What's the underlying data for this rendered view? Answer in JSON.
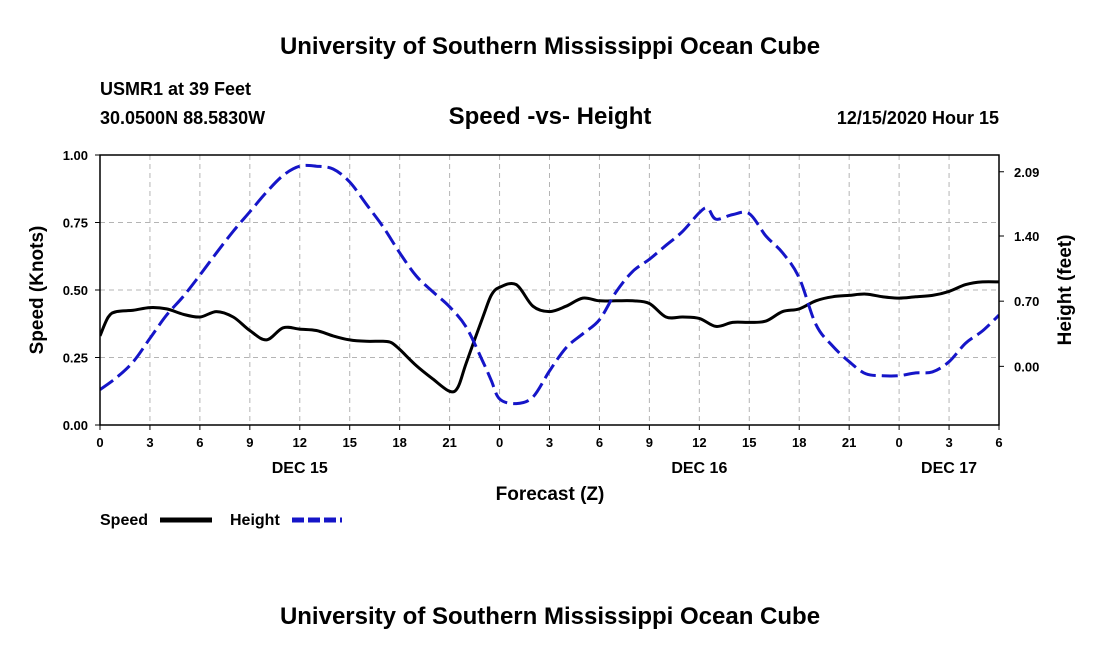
{
  "header": {
    "title": "University of Southern Mississippi Ocean Cube",
    "station": "USMR1 at 39 Feet",
    "coords": "30.0500N 88.5830W",
    "date": "12/15/2020 Hour 15",
    "footer": "University of Southern Mississippi Ocean Cube"
  },
  "colors": {
    "speed": "#000000",
    "height": "#1515c8",
    "grid": "#b4b4b4",
    "axis": "#000000"
  },
  "chart_data": {
    "type": "line",
    "title": "Speed -vs- Height",
    "xlabel": "Forecast (Z)",
    "ylabel_left": "Speed (Knots)",
    "ylabel_right": "Height (feet)",
    "x_unit": "hours since 2020-12-15 00Z",
    "xlim": [
      0,
      54
    ],
    "ylim_left": [
      0,
      1
    ],
    "ylim_right": [
      -0.63,
      2.27
    ],
    "grid": true,
    "legend_position": "bottom-left",
    "x_ticks": [
      {
        "x": 0,
        "label": "0"
      },
      {
        "x": 3,
        "label": "3"
      },
      {
        "x": 6,
        "label": "6"
      },
      {
        "x": 9,
        "label": "9"
      },
      {
        "x": 12,
        "label": "12"
      },
      {
        "x": 15,
        "label": "15"
      },
      {
        "x": 18,
        "label": "18"
      },
      {
        "x": 21,
        "label": "21"
      },
      {
        "x": 24,
        "label": "0"
      },
      {
        "x": 27,
        "label": "3"
      },
      {
        "x": 30,
        "label": "6"
      },
      {
        "x": 33,
        "label": "9"
      },
      {
        "x": 36,
        "label": "12"
      },
      {
        "x": 39,
        "label": "15"
      },
      {
        "x": 42,
        "label": "18"
      },
      {
        "x": 45,
        "label": "21"
      },
      {
        "x": 48,
        "label": "0"
      },
      {
        "x": 51,
        "label": "3"
      },
      {
        "x": 54,
        "label": "6"
      }
    ],
    "day_labels": [
      {
        "x": 12,
        "label": "DEC 15"
      },
      {
        "x": 36,
        "label": "DEC 16"
      },
      {
        "x": 51,
        "label": "DEC 17"
      }
    ],
    "y_ticks_left": [
      "0.00",
      "0.25",
      "0.50",
      "0.75",
      "1.00"
    ],
    "y_ticks_right": [
      "0.00",
      "0.70",
      "1.40",
      "2.09"
    ],
    "y_ticks_right_values": [
      0.0,
      0.7,
      1.4,
      2.09
    ],
    "series": [
      {
        "name": "Speed",
        "axis": "left",
        "style": "solid",
        "x": [
          0,
          0.5,
          1,
          2,
          3,
          4,
          5,
          6,
          7,
          8,
          9,
          10,
          11,
          12,
          13,
          14,
          15,
          16,
          17,
          17.5,
          18,
          19,
          20,
          21,
          21.5,
          22,
          23,
          23.5,
          24,
          25,
          26,
          27,
          28,
          29,
          30,
          31,
          32,
          33,
          34,
          35,
          36,
          37,
          38,
          39,
          40,
          41,
          42,
          43,
          44,
          45,
          46,
          47,
          48,
          49,
          50,
          51,
          52,
          53,
          54
        ],
        "values": [
          0.33,
          0.4,
          0.42,
          0.425,
          0.435,
          0.43,
          0.41,
          0.4,
          0.42,
          0.4,
          0.35,
          0.315,
          0.36,
          0.355,
          0.35,
          0.33,
          0.315,
          0.31,
          0.31,
          0.305,
          0.28,
          0.22,
          0.17,
          0.125,
          0.14,
          0.23,
          0.4,
          0.48,
          0.51,
          0.52,
          0.44,
          0.42,
          0.44,
          0.47,
          0.46,
          0.46,
          0.46,
          0.45,
          0.4,
          0.4,
          0.395,
          0.365,
          0.38,
          0.38,
          0.385,
          0.42,
          0.43,
          0.46,
          0.475,
          0.48,
          0.485,
          0.475,
          0.47,
          0.475,
          0.48,
          0.495,
          0.52,
          0.53,
          0.53
        ]
      },
      {
        "name": "Height",
        "axis": "right",
        "style": "dashed",
        "x": [
          0,
          1,
          2,
          3,
          4,
          5,
          6,
          7,
          8,
          9,
          10,
          11,
          12,
          13,
          14,
          15,
          16,
          17,
          18,
          19,
          20,
          21,
          22,
          23,
          23.5,
          24,
          25,
          26,
          27,
          28,
          29,
          30,
          31,
          32,
          33,
          34,
          35,
          36,
          36.5,
          37,
          38,
          39,
          40,
          41,
          42,
          43,
          44,
          45,
          46,
          47,
          48,
          49,
          50,
          51,
          52,
          53,
          54
        ],
        "values": [
          -0.25,
          -0.12,
          0.05,
          0.3,
          0.55,
          0.75,
          0.98,
          1.22,
          1.45,
          1.66,
          1.87,
          2.05,
          2.15,
          2.15,
          2.12,
          1.98,
          1.74,
          1.5,
          1.22,
          0.97,
          0.8,
          0.64,
          0.42,
          0.05,
          -0.15,
          -0.35,
          -0.4,
          -0.33,
          -0.05,
          0.2,
          0.35,
          0.5,
          0.8,
          1.02,
          1.15,
          1.3,
          1.45,
          1.65,
          1.7,
          1.58,
          1.63,
          1.64,
          1.4,
          1.22,
          0.95,
          0.45,
          0.22,
          0.05,
          -0.08,
          -0.1,
          -0.1,
          -0.07,
          -0.06,
          0.05,
          0.25,
          0.38,
          0.55
        ]
      }
    ]
  },
  "legend": {
    "speed_label": "Speed",
    "height_label": "Height"
  }
}
